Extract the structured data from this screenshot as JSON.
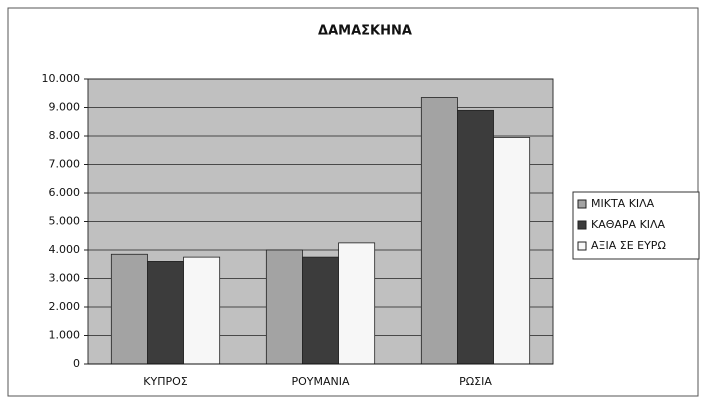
{
  "chart_data": {
    "type": "bar",
    "title": "ΔΑΜΑΣΚΗΝΑ",
    "categories": [
      "ΚΥΠΡΟΣ",
      "ΡΟΥΜΑΝΙΑ",
      "ΡΩΣΙΑ"
    ],
    "series": [
      {
        "name": "ΜΙΚΤΑ ΚΙΛΑ",
        "color": "#a3a3a3",
        "values": [
          3850,
          4000,
          9350
        ]
      },
      {
        "name": "ΚΑΘΑΡΑ ΚΙΛΑ",
        "color": "#3c3c3c",
        "values": [
          3600,
          3750,
          8900
        ]
      },
      {
        "name": "ΑΞΙΑ ΣΕ ΕΥΡΩ",
        "color": "#f7f7f7",
        "values": [
          3750,
          4250,
          7950
        ]
      }
    ],
    "ylim": [
      0,
      10000
    ],
    "yticks": [
      0,
      {
        "value": 1000,
        "label": "1.000"
      },
      {
        "value": 2000,
        "label": "2.000"
      },
      {
        "value": 3000,
        "label": "3.000"
      },
      {
        "value": 4000,
        "label": "4.000"
      },
      {
        "value": 5000,
        "label": "5.000"
      },
      {
        "value": 6000,
        "label": "6.000"
      },
      {
        "value": 7000,
        "label": "7.000"
      },
      {
        "value": 8000,
        "label": "8.000"
      },
      {
        "value": 9000,
        "label": "9.000"
      },
      {
        "value": 10000,
        "label": "10.000"
      }
    ],
    "grid": true,
    "legend": "right"
  }
}
